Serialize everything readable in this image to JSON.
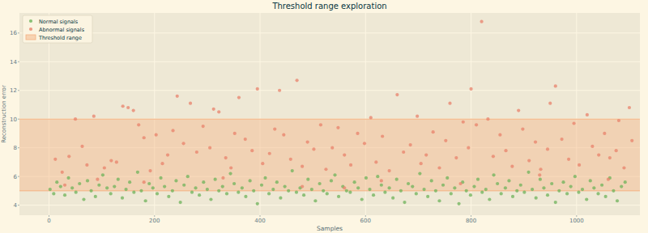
{
  "chart_data": {
    "type": "scatter",
    "title": "Threshold range exploration",
    "x_label": "Samples",
    "y_label": "Reconstruction error",
    "xlim": [
      -56,
      1120
    ],
    "xticks": [
      0,
      200,
      400,
      600,
      800,
      1000
    ],
    "ylim": [
      3.3,
      17.4
    ],
    "yticks": [
      4,
      6,
      8,
      10,
      12,
      14,
      16
    ],
    "grid": true,
    "legend": "upper left",
    "series": [
      {
        "name": "Normal signals",
        "color": "#6db35a",
        "marker": "circle",
        "x": [
          2,
          9,
          15,
          22,
          30,
          37,
          44,
          51,
          58,
          66,
          73,
          80,
          88,
          95,
          102,
          110,
          117,
          124,
          131,
          139,
          146,
          153,
          161,
          168,
          175,
          183,
          190,
          197,
          205,
          212,
          219,
          227,
          234,
          241,
          249,
          256,
          263,
          271,
          278,
          285,
          293,
          300,
          307,
          315,
          322,
          329,
          337,
          344,
          351,
          359,
          366,
          373,
          381,
          388,
          395,
          403,
          410,
          417,
          425,
          432,
          439,
          447,
          454,
          461,
          469,
          476,
          483,
          491,
          498,
          505,
          513,
          520,
          527,
          535,
          542,
          549,
          557,
          564,
          571,
          579,
          586,
          593,
          601,
          608,
          615,
          623,
          630,
          637,
          645,
          652,
          659,
          667,
          674,
          681,
          689,
          696,
          703,
          711,
          718,
          725,
          733,
          740,
          747,
          755,
          762,
          769,
          777,
          784,
          791,
          799,
          806,
          813,
          821,
          828,
          835,
          843,
          850,
          857,
          865,
          872,
          879,
          887,
          894,
          901,
          909,
          916,
          923,
          931,
          938,
          945,
          953,
          960,
          967,
          975,
          982,
          989,
          997,
          1004,
          1011,
          1019,
          1026,
          1033,
          1041,
          1048,
          1055,
          1063,
          1070,
          1077,
          1085,
          1092
        ],
        "values": [
          5.1,
          4.8,
          5.6,
          5.3,
          4.7,
          5.9,
          5.2,
          4.9,
          5.5,
          4.4,
          5.7,
          5.0,
          4.6,
          5.4,
          6.1,
          5.2,
          4.8,
          5.3,
          5.8,
          4.5,
          5.1,
          5.6,
          4.9,
          6.3,
          5.0,
          4.3,
          5.5,
          5.2,
          4.8,
          5.9,
          5.3,
          4.6,
          5.0,
          5.7,
          4.2,
          5.4,
          6.0,
          4.9,
          5.2,
          4.7,
          5.6,
          5.1,
          4.4,
          5.8,
          5.0,
          5.3,
          4.8,
          6.2,
          5.5,
          4.9,
          5.2,
          4.6,
          5.7,
          5.0,
          4.1,
          5.4,
          5.9,
          4.8,
          5.1,
          5.6,
          4.5,
          5.3,
          5.0,
          6.4,
          4.9,
          5.2,
          4.7,
          5.8,
          5.1,
          4.3,
          5.5,
          5.0,
          4.8,
          5.7,
          6.1,
          4.6,
          5.3,
          5.0,
          4.9,
          5.6,
          5.2,
          4.4,
          5.9,
          5.1,
          4.7,
          6.0,
          5.4,
          4.9,
          5.2,
          4.5,
          5.8,
          5.0,
          4.2,
          5.5,
          5.3,
          4.8,
          6.2,
          5.1,
          4.6,
          5.7,
          5.0,
          4.3,
          5.4,
          5.9,
          4.8,
          5.2,
          4.1,
          5.6,
          5.0,
          4.7,
          5.3,
          5.8,
          4.9,
          5.1,
          4.4,
          6.1,
          5.5,
          4.8,
          5.2,
          5.7,
          4.6,
          5.0,
          5.4,
          4.9,
          6.3,
          5.1,
          4.5,
          5.8,
          5.2,
          4.7,
          5.5,
          4.2,
          5.0,
          5.6,
          4.8,
          5.3,
          6.0,
          4.9,
          5.1,
          4.4,
          5.7,
          5.2,
          4.8,
          5.4,
          4.6,
          5.9,
          5.0,
          4.3,
          5.3,
          5.6
        ]
      },
      {
        "name": "Abnormal signals",
        "color": "#e8826b",
        "marker": "circle",
        "x": [
          12,
          25,
          38,
          50,
          63,
          72,
          85,
          92,
          105,
          118,
          128,
          140,
          150,
          160,
          170,
          180,
          192,
          203,
          215,
          225,
          235,
          243,
          255,
          268,
          280,
          292,
          305,
          312,
          322,
          335,
          345,
          352,
          360,
          372,
          385,
          395,
          405,
          418,
          428,
          437,
          445,
          458,
          470,
          480,
          490,
          502,
          515,
          525,
          537,
          548,
          560,
          572,
          585,
          598,
          610,
          620,
          632,
          645,
          660,
          672,
          685,
          698,
          705,
          715,
          728,
          740,
          752,
          760,
          772,
          785,
          795,
          800,
          810,
          820,
          832,
          842,
          855,
          866,
          878,
          890,
          898,
          910,
          922,
          932,
          945,
          950,
          960,
          972,
          985,
          995,
          1005,
          1020,
          1030,
          1042,
          1053,
          1063,
          1075,
          1080,
          1090,
          1100,
          1105,
          30,
          180,
          330,
          480,
          630,
          780,
          930,
          1060,
          560
        ],
        "values": [
          7.2,
          6.3,
          7.4,
          10.0,
          8.1,
          6.8,
          10.2,
          5.8,
          6.6,
          7.1,
          7.0,
          10.9,
          10.8,
          10.6,
          9.6,
          8.7,
          6.4,
          8.9,
          6.9,
          7.5,
          9.2,
          11.6,
          8.3,
          11.1,
          7.7,
          9.5,
          8.0,
          10.7,
          10.5,
          7.3,
          6.6,
          9.0,
          11.5,
          8.6,
          7.8,
          12.1,
          6.9,
          7.6,
          9.3,
          12.0,
          8.9,
          7.2,
          12.7,
          6.7,
          8.4,
          7.9,
          9.6,
          6.5,
          8.0,
          9.4,
          7.5,
          6.8,
          9.0,
          8.3,
          10.1,
          7.0,
          8.8,
          6.4,
          11.7,
          7.7,
          8.2,
          10.2,
          6.9,
          7.5,
          9.1,
          6.6,
          8.5,
          11.1,
          7.3,
          9.8,
          8.0,
          12.1,
          9.6,
          16.8,
          10.0,
          7.4,
          8.9,
          7.8,
          6.7,
          10.6,
          9.3,
          7.1,
          8.4,
          6.5,
          7.9,
          11.1,
          12.3,
          8.6,
          7.2,
          9.7,
          6.8,
          10.3,
          8.1,
          7.5,
          9.0,
          7.3,
          7.8,
          9.9,
          6.6,
          10.8,
          8.5,
          5.4,
          5.6,
          5.9,
          5.3,
          5.7,
          5.5,
          6.1,
          5.8,
          5.2
        ]
      },
      {
        "name": "Threshold range",
        "type": "band",
        "color": "#f4b183",
        "values": [
          5.0,
          10.0
        ]
      }
    ]
  }
}
